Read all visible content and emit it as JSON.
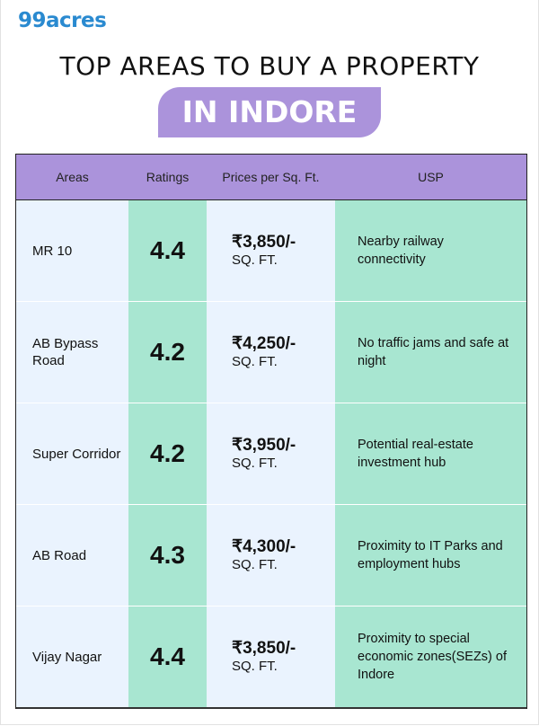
{
  "brand": {
    "logo": "99acres",
    "color": "#2a8ad0"
  },
  "header": {
    "title": "TOP AREAS TO BUY A PROPERTY",
    "badge": "IN INDORE"
  },
  "colors": {
    "header_bg": "#ab93db",
    "green": "#a8e6d1",
    "light_blue": "#eaf3fe"
  },
  "table": {
    "columns": [
      "Areas",
      "Ratings",
      "Prices per Sq. Ft.",
      "USP"
    ],
    "rows": [
      {
        "area": "MR 10",
        "rating": "4.4",
        "price": "₹3,850/-",
        "unit": "SQ. FT.",
        "usp": "Nearby railway connectivity"
      },
      {
        "area": "AB Bypass Road",
        "rating": "4.2",
        "price": "₹4,250/-",
        "unit": "SQ. FT.",
        "usp": "No traffic jams and safe at night"
      },
      {
        "area": "Super Corridor",
        "rating": "4.2",
        "price": "₹3,950/-",
        "unit": "SQ. FT.",
        "usp": "Potential real-estate investment hub"
      },
      {
        "area": "AB Road",
        "rating": "4.3",
        "price": "₹4,300/-",
        "unit": "SQ. FT.",
        "usp": "Proximity to IT Parks and employment hubs"
      },
      {
        "area": "Vijay Nagar",
        "rating": "4.4",
        "price": "₹3,850/-",
        "unit": "SQ. FT.",
        "usp": "Proximity to special economic zones(SEZs) of Indore"
      }
    ]
  }
}
